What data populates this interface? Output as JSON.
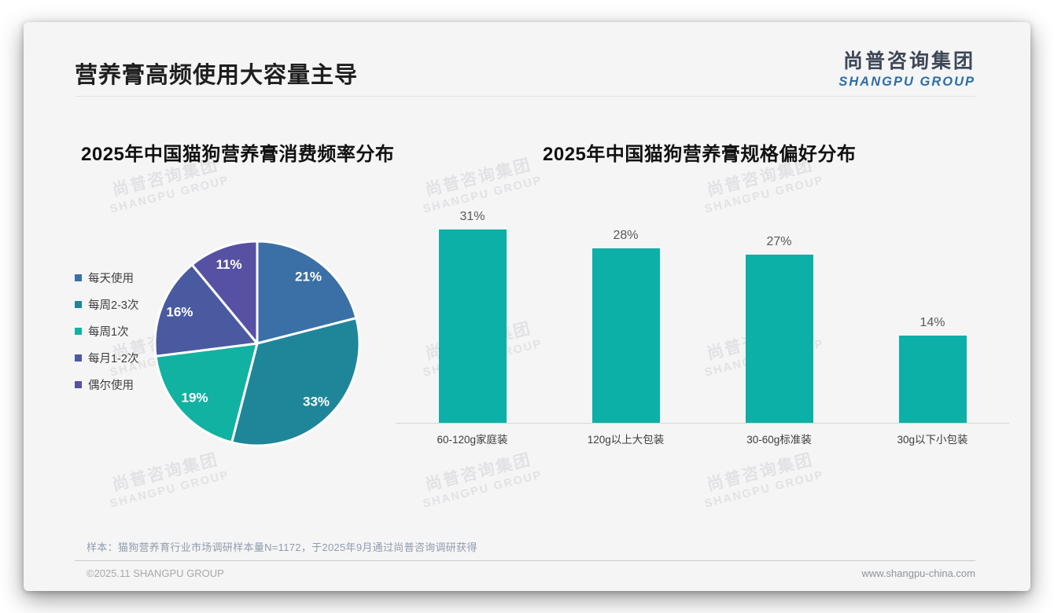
{
  "slide": {
    "title": "营养膏高频使用大容量主导",
    "logo": {
      "cn": "尚普咨询集团",
      "en": "SHANGPU GROUP"
    },
    "watermark_text": {
      "cn": "尚普咨询集团",
      "en": "SHANGPU GROUP"
    },
    "footnote": "样本：猫狗营养育行业市场调研样本量N=1172，于2025年9月通过尚普咨询调研获得",
    "footer": {
      "copyright": "©2025.11 SHANGPU GROUP",
      "website": "www.shangpu-china.com"
    }
  },
  "colors": {
    "card_bg": "#f5f5f6",
    "title_text": "#1f1f1f",
    "logo_blue": "#2e6da4",
    "bar": "#0cb0a6",
    "watermark": "#e2e2e5"
  },
  "chart_data": [
    {
      "type": "pie",
      "title": "2025年中国猫狗营养膏消费频率分布",
      "labels": [
        "每天使用",
        "每周2-3次",
        "每周1次",
        "每月1-2次",
        "偶尔使用"
      ],
      "values": [
        21,
        33,
        19,
        16,
        11
      ],
      "unit": "%",
      "colors": [
        "#3B70A6",
        "#1F869A",
        "#12B2A2",
        "#4A5AA0",
        "#5751A3"
      ],
      "legend_position": "left",
      "start_angle_deg_clockwise_from_top": 0,
      "slice_border": "#ffffff",
      "value_labels": "inside, white"
    },
    {
      "type": "bar",
      "title": "2025年中国猫狗营养膏规格偏好分布",
      "categories": [
        "60-120g家庭装",
        "120g以上大包装",
        "30-60g标准装",
        "30g以下小包装"
      ],
      "values": [
        31,
        28,
        27,
        14
      ],
      "unit": "%",
      "bar_color": "#0cb0a6",
      "ylim": [
        0,
        35
      ],
      "grid": false,
      "value_labels": "above bars"
    }
  ]
}
